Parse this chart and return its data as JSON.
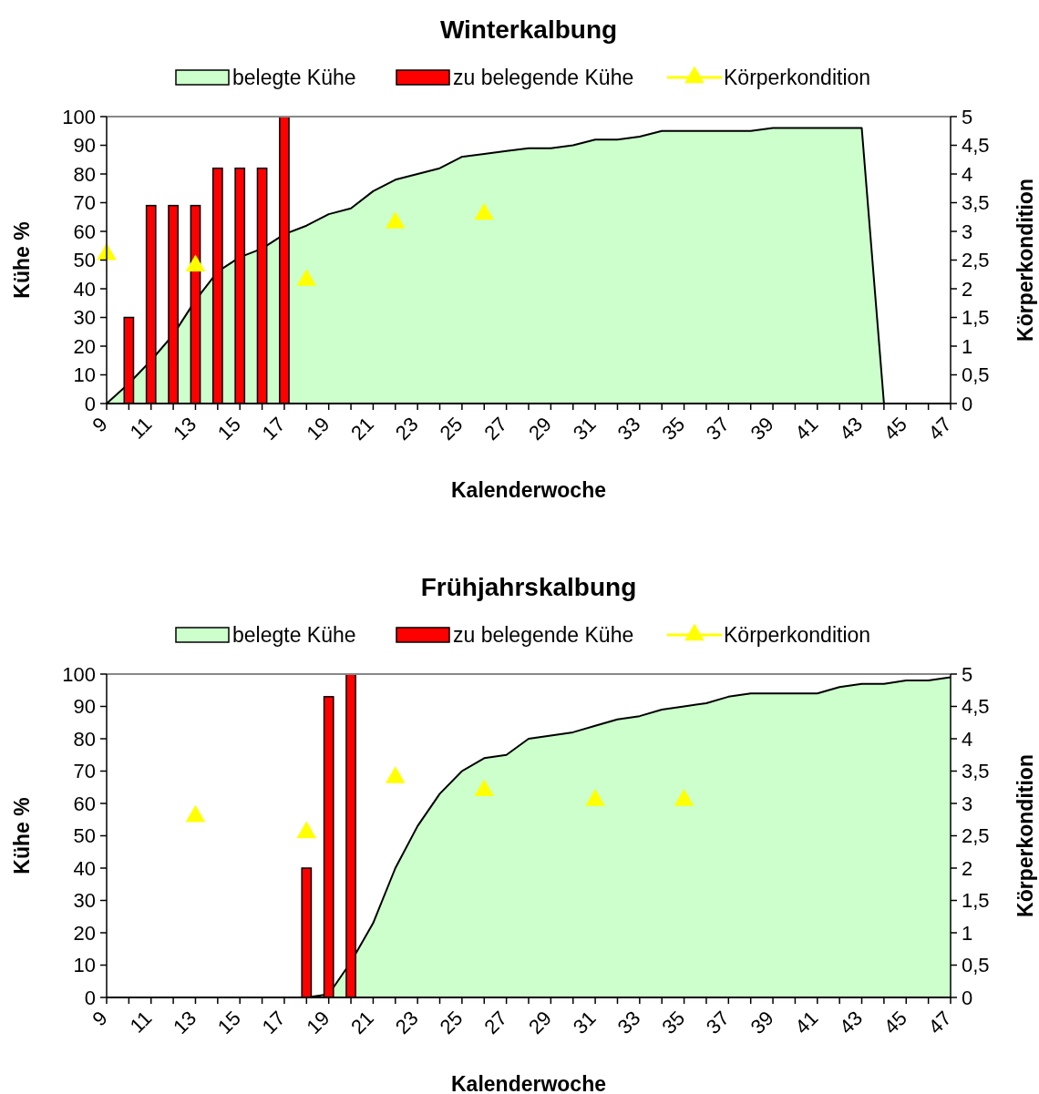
{
  "chart_data": [
    {
      "type": "bar",
      "title": "Winterkalbung",
      "xlabel": "Kalenderwoche",
      "ylabel": "Kühe %",
      "y2label": "Körperkondition",
      "legend": "top",
      "categories": [
        "9",
        null,
        "11",
        null,
        "13",
        null,
        "15",
        null,
        "17",
        null,
        "19",
        null,
        "21",
        null,
        "23",
        null,
        "25",
        null,
        "27",
        null,
        "29",
        null,
        "31",
        null,
        "33",
        null,
        "35",
        null,
        "37",
        null,
        "39",
        null,
        "41",
        null,
        "43",
        null,
        "45",
        null,
        "47"
      ],
      "ylim": [
        0,
        100
      ],
      "yticks": [
        0,
        10,
        20,
        30,
        40,
        50,
        60,
        70,
        80,
        90,
        100
      ],
      "y2lim": [
        0,
        5
      ],
      "y2ticks": [
        0,
        {
          "value": 0.5,
          "label": "0,5"
        },
        1,
        {
          "value": 1.5,
          "label": "1,5"
        },
        2,
        {
          "value": 2.5,
          "label": "2,5"
        },
        3,
        {
          "value": 3.5,
          "label": "3,5"
        },
        4,
        {
          "value": 4.5,
          "label": "4,5"
        },
        5
      ],
      "series": [
        {
          "name": "belegte Kühe",
          "type": "area",
          "color": "#ccffcc",
          "values": [
            0,
            7,
            15,
            24,
            36,
            46,
            51,
            54,
            59,
            62,
            66,
            68,
            74,
            78,
            80,
            82,
            86,
            87,
            88,
            89,
            89,
            90,
            92,
            92,
            93,
            95,
            95,
            95,
            95,
            95,
            96,
            96,
            96,
            96,
            96,
            0,
            0,
            0,
            0
          ]
        },
        {
          "name": "zu belegende Kühe",
          "color": "#ff0000",
          "values": [
            null,
            30,
            69,
            69,
            69,
            82,
            82,
            82,
            100,
            null,
            null,
            null,
            null,
            null,
            null,
            null,
            null,
            null,
            null,
            null,
            null,
            null,
            null,
            null,
            null,
            null,
            null,
            null,
            null,
            null,
            null,
            null,
            null,
            null,
            null,
            null,
            null,
            null,
            null
          ]
        },
        {
          "name": "Körperkondition",
          "type": "scatter",
          "axis": "y2",
          "marker": "triangle",
          "color": "#ffff00",
          "values": [
            2.6,
            null,
            null,
            null,
            2.4,
            null,
            null,
            null,
            null,
            2.15,
            null,
            null,
            null,
            3.15,
            null,
            null,
            null,
            3.3,
            null,
            null,
            null,
            null,
            null,
            null,
            null,
            null,
            null,
            null,
            null,
            null,
            null,
            null,
            null,
            null,
            null,
            null,
            null,
            null,
            null
          ]
        }
      ]
    },
    {
      "type": "bar",
      "title": "Frühjahrskalbung",
      "xlabel": "Kalenderwoche",
      "ylabel": "Kühe %",
      "y2label": "Körperkondition",
      "legend": "top",
      "categories": [
        "9",
        null,
        "11",
        null,
        "13",
        null,
        "15",
        null,
        "17",
        null,
        "19",
        null,
        "21",
        null,
        "23",
        null,
        "25",
        null,
        "27",
        null,
        "29",
        null,
        "31",
        null,
        "33",
        null,
        "35",
        null,
        "37",
        null,
        "39",
        null,
        "41",
        null,
        "43",
        null,
        "45",
        null,
        "47"
      ],
      "ylim": [
        0,
        100
      ],
      "yticks": [
        0,
        10,
        20,
        30,
        40,
        50,
        60,
        70,
        80,
        90,
        100
      ],
      "y2lim": [
        0,
        5
      ],
      "y2ticks": [
        0,
        {
          "value": 0.5,
          "label": "0,5"
        },
        1,
        {
          "value": 1.5,
          "label": "1,5"
        },
        2,
        {
          "value": 2.5,
          "label": "2,5"
        },
        3,
        {
          "value": 3.5,
          "label": "3,5"
        },
        4,
        {
          "value": 4.5,
          "label": "4,5"
        },
        5
      ],
      "series": [
        {
          "name": "belegte Kühe",
          "type": "area",
          "color": "#ccffcc",
          "values": [
            0,
            0,
            0,
            0,
            0,
            0,
            0,
            0,
            0,
            0,
            1,
            11,
            23,
            40,
            53,
            63,
            70,
            74,
            75,
            80,
            81,
            82,
            84,
            86,
            87,
            89,
            90,
            91,
            93,
            94,
            94,
            94,
            94,
            96,
            97,
            97,
            98,
            98,
            99
          ]
        },
        {
          "name": "zu belegende Kühe",
          "color": "#ff0000",
          "values": [
            null,
            null,
            null,
            null,
            null,
            null,
            null,
            null,
            null,
            40,
            93,
            100,
            null,
            null,
            null,
            null,
            null,
            null,
            null,
            null,
            null,
            null,
            null,
            null,
            null,
            null,
            null,
            null,
            null,
            null,
            null,
            null,
            null,
            null,
            null,
            null,
            null,
            null,
            null
          ]
        },
        {
          "name": "Körperkondition",
          "type": "scatter",
          "axis": "y2",
          "marker": "triangle",
          "color": "#ffff00",
          "values": [
            null,
            null,
            null,
            null,
            2.8,
            null,
            null,
            null,
            null,
            2.55,
            null,
            null,
            null,
            3.4,
            null,
            null,
            null,
            3.2,
            null,
            null,
            null,
            null,
            3.05,
            null,
            null,
            null,
            3.05,
            null,
            null,
            null,
            null,
            null,
            null,
            null,
            null,
            null,
            null,
            null,
            null
          ]
        }
      ]
    }
  ]
}
